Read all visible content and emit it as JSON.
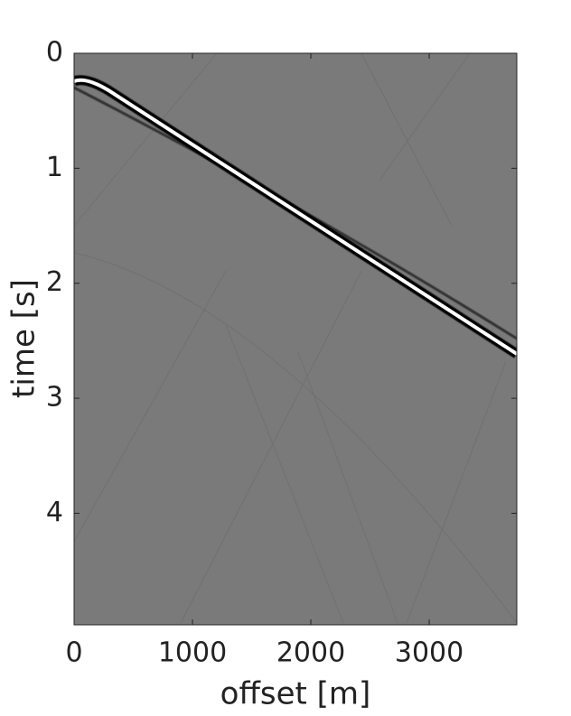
{
  "chart_data": {
    "type": "image",
    "xlabel": "offset [m]",
    "ylabel": "time [s]",
    "xlim": [
      0,
      3740
    ],
    "ylim": [
      0,
      4.97
    ],
    "yreverse": true,
    "xticks": [
      0,
      1000,
      2000,
      3000
    ],
    "yticks": [
      0,
      1,
      2,
      3,
      4
    ],
    "color": "#7a7a7a"
  }
}
